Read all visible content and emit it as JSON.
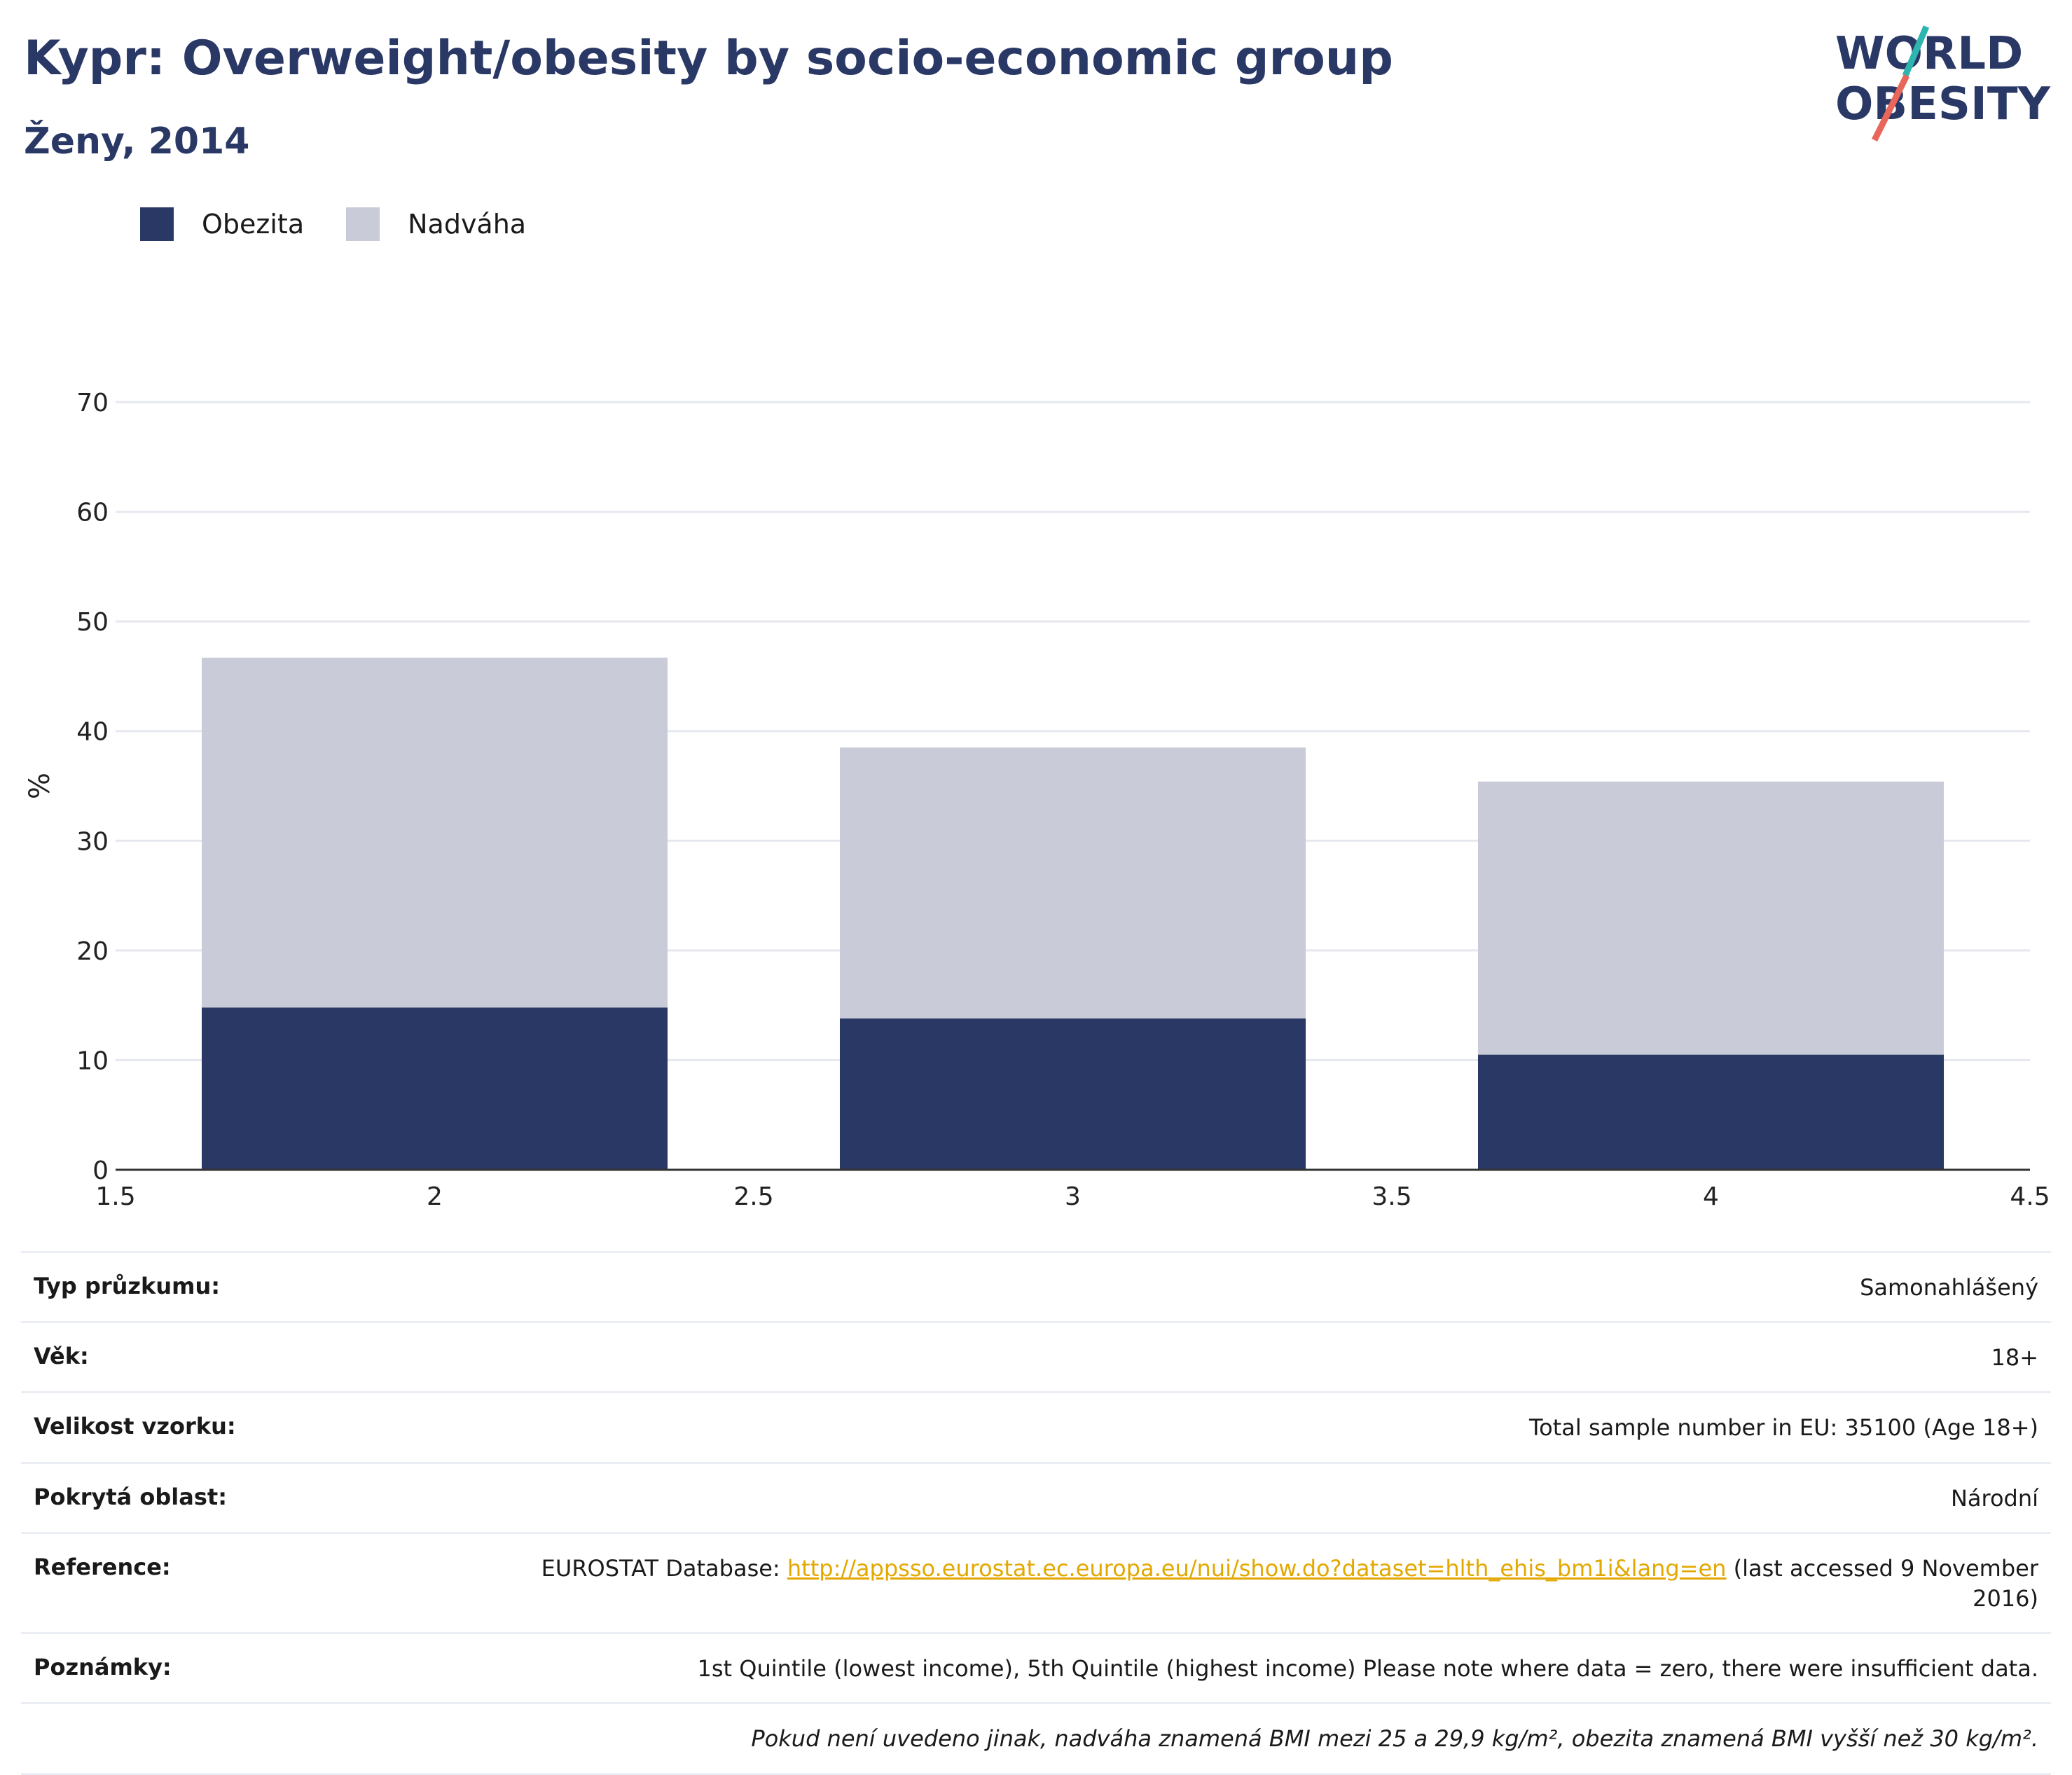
{
  "header": {
    "title": "Kypr: Overweight/obesity by socio-economic group",
    "subtitle": "Ženy, 2014",
    "logo_text_line1": "WORLD",
    "logo_text_line2": "OBESITY"
  },
  "legend": {
    "items": [
      {
        "label": "Obezita",
        "color": "#2a3866"
      },
      {
        "label": "Nadváha",
        "color": "#c9ccd8"
      }
    ]
  },
  "chart_data": {
    "type": "bar",
    "stacked": true,
    "x": [
      2,
      3,
      4
    ],
    "xlim": [
      1.5,
      4.5
    ],
    "xticks": [
      "1.5",
      "2",
      "2.5",
      "3",
      "3.5",
      "4",
      "4.5"
    ],
    "ylabel": "%",
    "ylim": [
      0,
      70
    ],
    "yticks": [
      "0",
      "10",
      "20",
      "30",
      "40",
      "50",
      "60",
      "70"
    ],
    "grid": true,
    "legend_position": "top-left",
    "series": [
      {
        "name": "Obezita",
        "color": "#2a3866",
        "values": [
          14.8,
          13.8,
          10.5
        ]
      },
      {
        "name": "Nadváha",
        "color": "#c9ccd8",
        "values": [
          31.9,
          24.7,
          24.9
        ]
      }
    ]
  },
  "meta": {
    "survey_type": {
      "label": "Typ průzkumu:",
      "value": "Samonahlášený"
    },
    "age": {
      "label": "Věk:",
      "value": "18+"
    },
    "sample": {
      "label": "Velikost vzorku:",
      "value": "Total sample number in EU: 35100 (Age 18+)"
    },
    "area": {
      "label": "Pokrytá oblast:",
      "value": "Národní"
    },
    "reference": {
      "label": "Reference:",
      "prefix": "EUROSTAT Database: ",
      "link": "http://appsso.eurostat.ec.europa.eu/nui/show.do?dataset=hlth_ehis_bm1i&lang=en",
      "suffix": " (last accessed 9 November 2016)"
    },
    "notes": {
      "label": "Poznámky:",
      "value": "1st Quintile (lowest income), 5th Quintile (highest income) Please note where data = zero, there were insufficient data."
    },
    "definition": "Pokud není uvedeno jinak, nadváha znamená BMI mezi 25 a 29,9 kg/m², obezita znamená BMI vyšší než 30 kg/m²."
  }
}
